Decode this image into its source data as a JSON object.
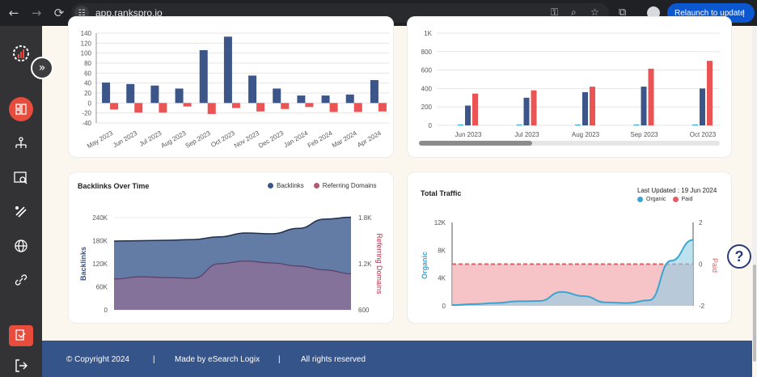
{
  "browser": {
    "url": "app.rankspro.io",
    "relaunch_label": "Relaunch to update"
  },
  "colors": {
    "navy": "#3c568a",
    "red": "#ea5455",
    "backlink_fill": "#5b75a1",
    "refdom_fill": "#8f6f96",
    "organic": "#3ba5d1",
    "paid": "#e65c64"
  },
  "monthly_chart": {
    "type": "bar",
    "categories": [
      "May 2023",
      "Jun 2023",
      "Jul 2023",
      "Aug 2023",
      "Sep 2023",
      "Oct 2023",
      "Nov 2023",
      "Dec 2023",
      "Jan 2024",
      "Feb 2024",
      "Mar 2024",
      "Apr 2024"
    ],
    "series": [
      {
        "values": [
          41,
          38,
          35,
          29,
          106,
          133,
          55,
          29,
          15,
          15,
          17,
          46
        ]
      },
      {
        "values": [
          -13,
          -19,
          -19,
          -7,
          -22,
          -10,
          -17,
          -12,
          -8,
          -18,
          -18,
          -17
        ]
      }
    ],
    "ylim": [
      -40,
      140
    ],
    "yticks": [
      "140",
      "120",
      "100",
      "80",
      "60",
      "40",
      "20",
      "0",
      "-20",
      "-40"
    ]
  },
  "traffic_bar_chart": {
    "type": "bar",
    "categories": [
      "Jun 2023",
      "Jul 2023",
      "Aug 2023",
      "Sep 2023",
      "Oct 2023"
    ],
    "series": [
      {
        "values": [
          10,
          10,
          10,
          10,
          10
        ]
      },
      {
        "values": [
          215,
          300,
          360,
          420,
          400
        ]
      },
      {
        "values": [
          345,
          380,
          420,
          615,
          700
        ]
      }
    ],
    "ylim": [
      0,
      1000
    ],
    "yticks": [
      "1K",
      "800",
      "600",
      "400",
      "200",
      "0"
    ]
  },
  "backlinks_chart": {
    "title": "Backlinks Over Time",
    "legend": [
      "Backlinks",
      "Referring Domains"
    ],
    "type": "area",
    "left_axis_label": "Backlinks",
    "right_axis_label": "Referring Domains",
    "left_ticks": [
      "240K",
      "180K",
      "120K",
      "60K",
      "0"
    ],
    "right_ticks": [
      "1.8K",
      "1.2K",
      "600"
    ],
    "backlinks": [
      179000,
      180000,
      181000,
      183000,
      190000,
      200000,
      198000,
      212000,
      236000,
      241000
    ],
    "referring_domains": [
      1000,
      1030,
      1020,
      1010,
      1200,
      1235,
      1210,
      1170,
      1120,
      1070
    ]
  },
  "traffic_chart": {
    "title": "Total Traffic",
    "updated_label": "Last Updated :",
    "updated_value": "19 Jun 2024",
    "legend": [
      "Organic",
      "Paid"
    ],
    "type": "area",
    "left_axis_label": "Organic",
    "right_axis_label": "Paid",
    "left_ticks": [
      "12K",
      "8K",
      "4K",
      "0"
    ],
    "right_ticks": [
      "2",
      "0",
      "-2"
    ],
    "paid_level": 0,
    "organic": [
      100,
      250,
      400,
      650,
      700,
      2000,
      1400,
      500,
      400,
      800,
      6500,
      9500
    ]
  },
  "footer": {
    "copyright": "© Copyright 2024",
    "sep1": "|",
    "made_by": "Made by eSearch Logix",
    "sep2": "|",
    "rights": "All rights reserved"
  }
}
